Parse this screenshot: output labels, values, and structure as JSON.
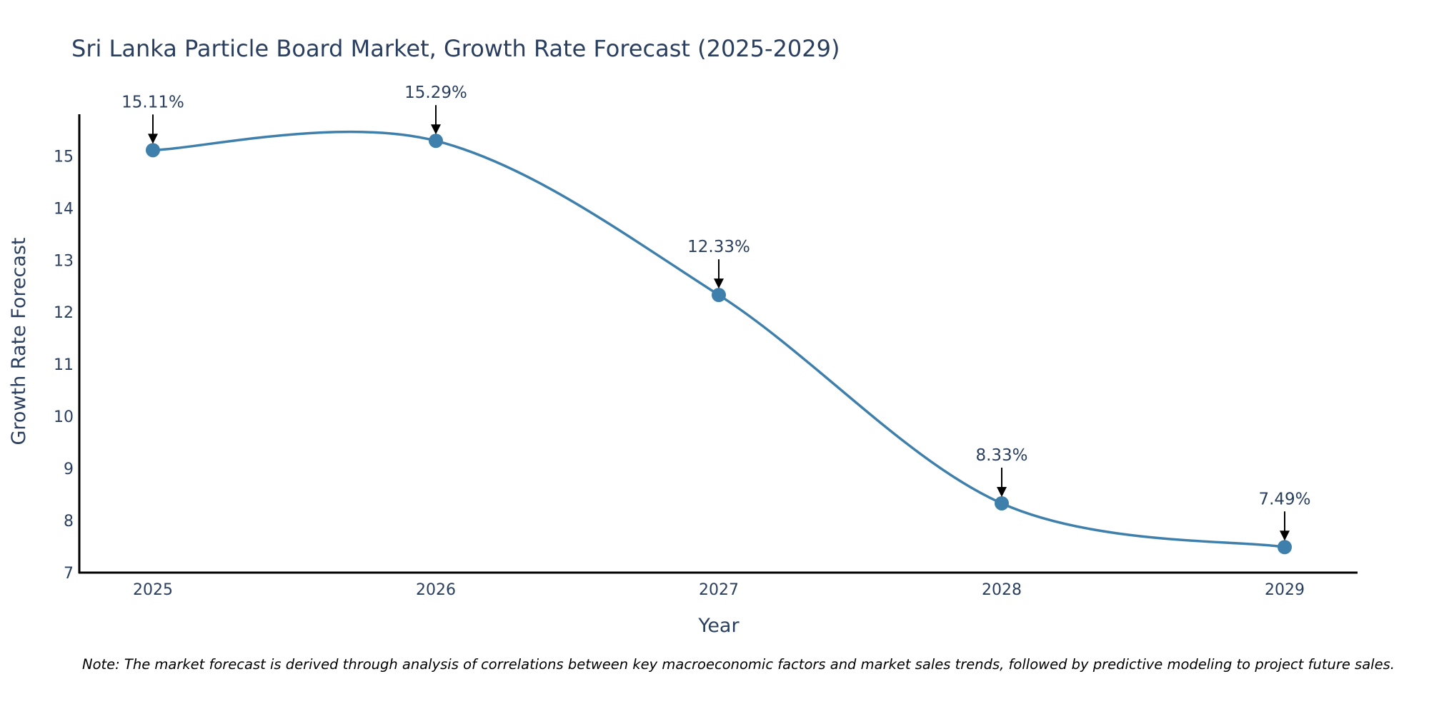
{
  "chart_data": {
    "type": "line",
    "title": "Sri Lanka Particle Board Market, Growth Rate Forecast (2025-2029)",
    "xlabel": "Year",
    "ylabel": "Growth Rate Forecast",
    "categories": [
      "2025",
      "2026",
      "2027",
      "2028",
      "2029"
    ],
    "values": [
      15.11,
      15.29,
      12.33,
      8.33,
      7.49
    ],
    "data_labels": [
      "15.11%",
      "15.29%",
      "12.33%",
      "8.33%",
      "7.49%"
    ],
    "ylim": [
      7,
      15.8
    ],
    "yticks": [
      7,
      8,
      9,
      10,
      11,
      12,
      13,
      14,
      15
    ],
    "grid": false,
    "line_color": "#3e80ab",
    "marker_color": "#3e80ab",
    "arrow_color": "#000000",
    "text_color": "#2a3f5f"
  },
  "note": "Note: The market forecast is derived through analysis of correlations between key macroeconomic factors and market sales trends, followed by predictive modeling to project future sales."
}
